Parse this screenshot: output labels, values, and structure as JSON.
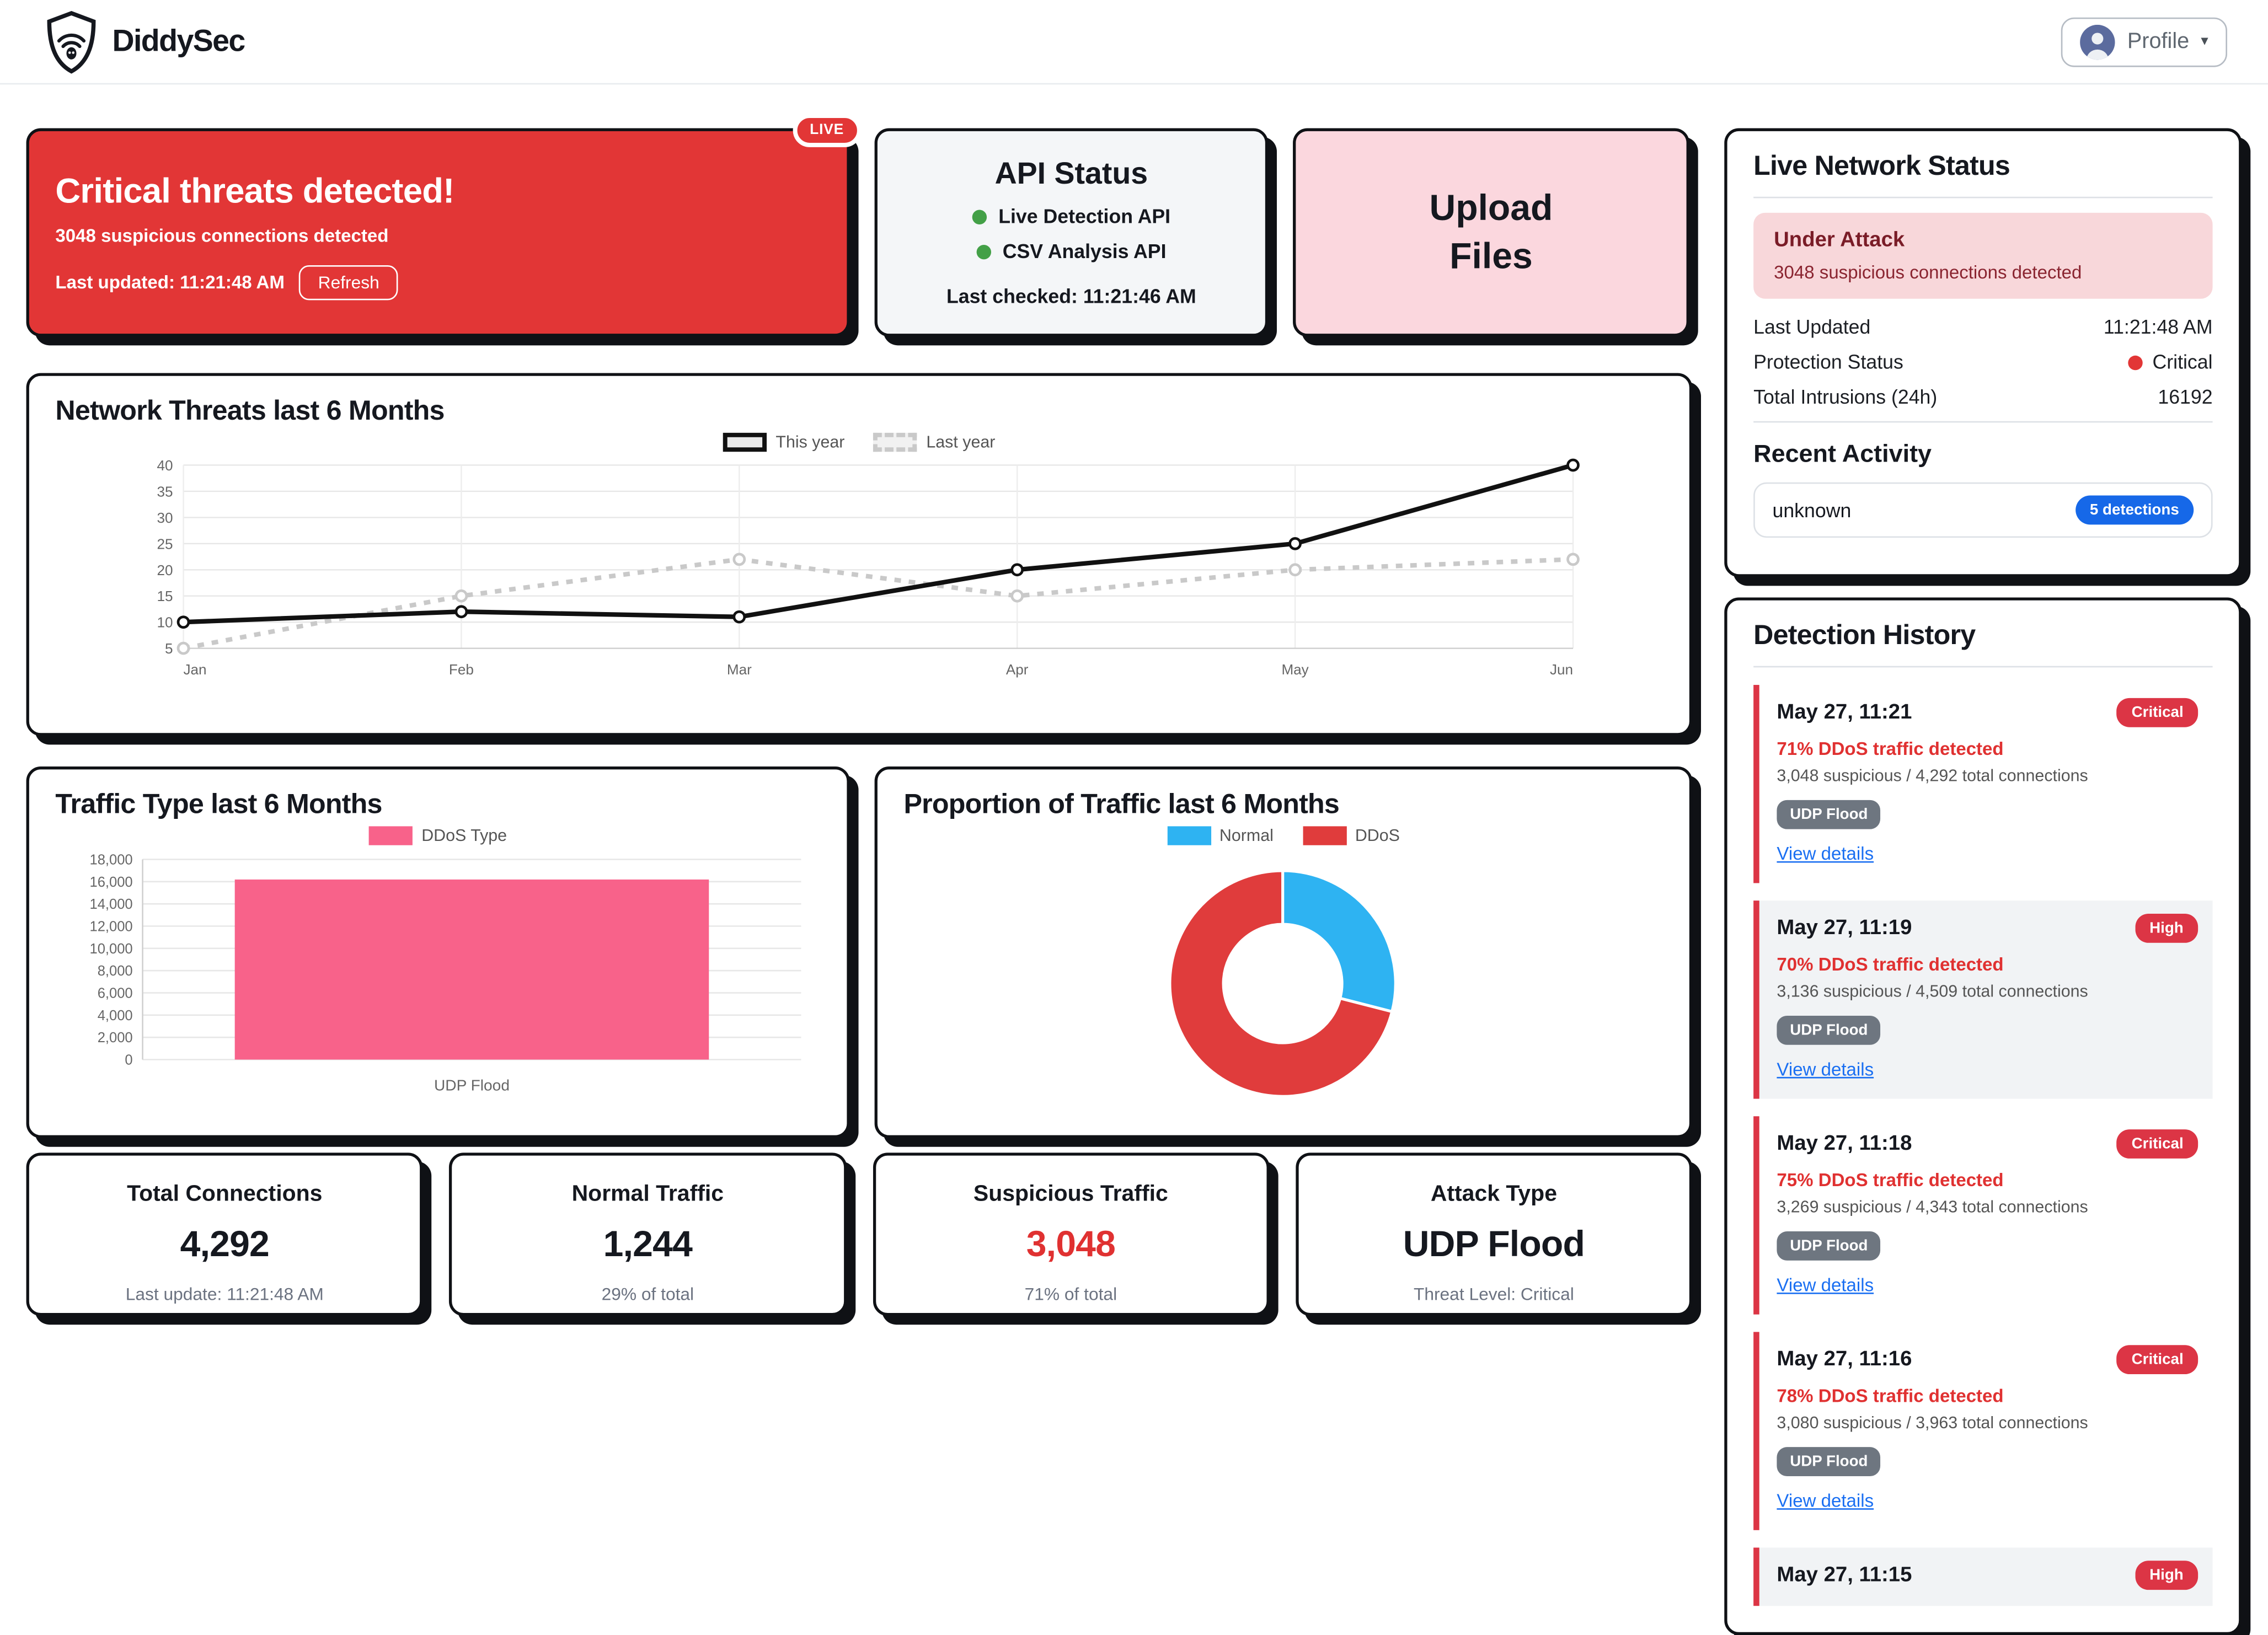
{
  "header": {
    "brand": "DiddySec",
    "profile_label": "Profile"
  },
  "alert_card": {
    "live_badge": "LIVE",
    "title": "Critical threats detected!",
    "subtitle": "3048 suspicious connections detected",
    "last_updated": "Last updated: 11:21:48 AM",
    "refresh_label": "Refresh"
  },
  "api_status": {
    "title": "API Status",
    "services": [
      {
        "name": "Live Detection API",
        "status_color": "#43a047"
      },
      {
        "name": "CSV Analysis API",
        "status_color": "#43a047"
      }
    ],
    "last_checked": "Last checked: 11:21:46 AM"
  },
  "upload_card": {
    "line1": "Upload",
    "line2": "Files"
  },
  "live_status": {
    "title": "Live Network Status",
    "alert_title": "Under Attack",
    "alert_text": "3048 suspicious connections detected",
    "rows": [
      {
        "label": "Last Updated",
        "value": "11:21:48 AM"
      },
      {
        "label": "Protection Status",
        "value": "Critical",
        "dot_color": "#e23636"
      },
      {
        "label": "Total Intrusions (24h)",
        "value": "16192"
      }
    ],
    "recent_title": "Recent Activity",
    "recent_item": {
      "name": "unknown",
      "badge": "5 detections",
      "badge_color": "#1668e8"
    }
  },
  "detection_history": {
    "title": "Detection History",
    "entries": [
      {
        "date": "May 27, 11:21",
        "severity": "Critical",
        "percent": "71% DDoS traffic detected",
        "connections": "3,048 suspicious / 4,292 total connections",
        "attack_type": "UDP Flood",
        "link": "View details",
        "highlight": false
      },
      {
        "date": "May 27, 11:19",
        "severity": "High",
        "percent": "70% DDoS traffic detected",
        "connections": "3,136 suspicious / 4,509 total connections",
        "attack_type": "UDP Flood",
        "link": "View details",
        "highlight": true
      },
      {
        "date": "May 27, 11:18",
        "severity": "Critical",
        "percent": "75% DDoS traffic detected",
        "connections": "3,269 suspicious / 4,343 total connections",
        "attack_type": "UDP Flood",
        "link": "View details",
        "highlight": false
      },
      {
        "date": "May 27, 11:16",
        "severity": "Critical",
        "percent": "78% DDoS traffic detected",
        "connections": "3,080 suspicious / 3,963 total connections",
        "attack_type": "UDP Flood",
        "link": "View details",
        "highlight": false
      },
      {
        "date": "May 27, 11:15",
        "severity": "High",
        "highlight": true
      }
    ],
    "severity_color": "#dc3545"
  },
  "stats_cards": [
    {
      "title": "Total Connections",
      "value": "4,292",
      "sub": "Last update: 11:21:48 AM"
    },
    {
      "title": "Normal Traffic",
      "value": "1,244",
      "sub": "29% of total"
    },
    {
      "title": "Suspicious Traffic",
      "value": "3,048",
      "sub": "71% of total",
      "value_color": "#e03131"
    },
    {
      "title": "Attack Type",
      "value": "UDP Flood",
      "sub": "Threat Level: Critical"
    }
  ],
  "chart_data": [
    {
      "type": "line",
      "title": "Network Threats last 6 Months",
      "categories": [
        "Jan",
        "Feb",
        "Mar",
        "Apr",
        "May",
        "Jun"
      ],
      "series": [
        {
          "name": "This year",
          "values": [
            10,
            12,
            11,
            20,
            25,
            40
          ],
          "color": "#111111",
          "style": "solid"
        },
        {
          "name": "Last year",
          "values": [
            5,
            15,
            22,
            15,
            20,
            22
          ],
          "color": "#c9c9c9",
          "style": "dashed"
        }
      ],
      "ylim": [
        5,
        40
      ],
      "ytick_step": 5,
      "grid": true,
      "legend_position": "top-center"
    },
    {
      "type": "bar",
      "title": "Traffic Type last 6 Months",
      "categories": [
        "UDP Flood"
      ],
      "series": [
        {
          "name": "DDoS Type",
          "values": [
            16192
          ],
          "color": "#f8628a"
        }
      ],
      "ylim": [
        0,
        18000
      ],
      "ytick_step": 2000,
      "grid": true,
      "legend_position": "top-center"
    },
    {
      "type": "donut",
      "title": "Proportion of Traffic last 6 Months",
      "labels": [
        "Normal",
        "DDoS"
      ],
      "values": [
        29,
        71
      ],
      "unit": "percent",
      "colors": [
        "#2eb3f2",
        "#e03c3c"
      ],
      "legend_position": "top-center"
    }
  ]
}
